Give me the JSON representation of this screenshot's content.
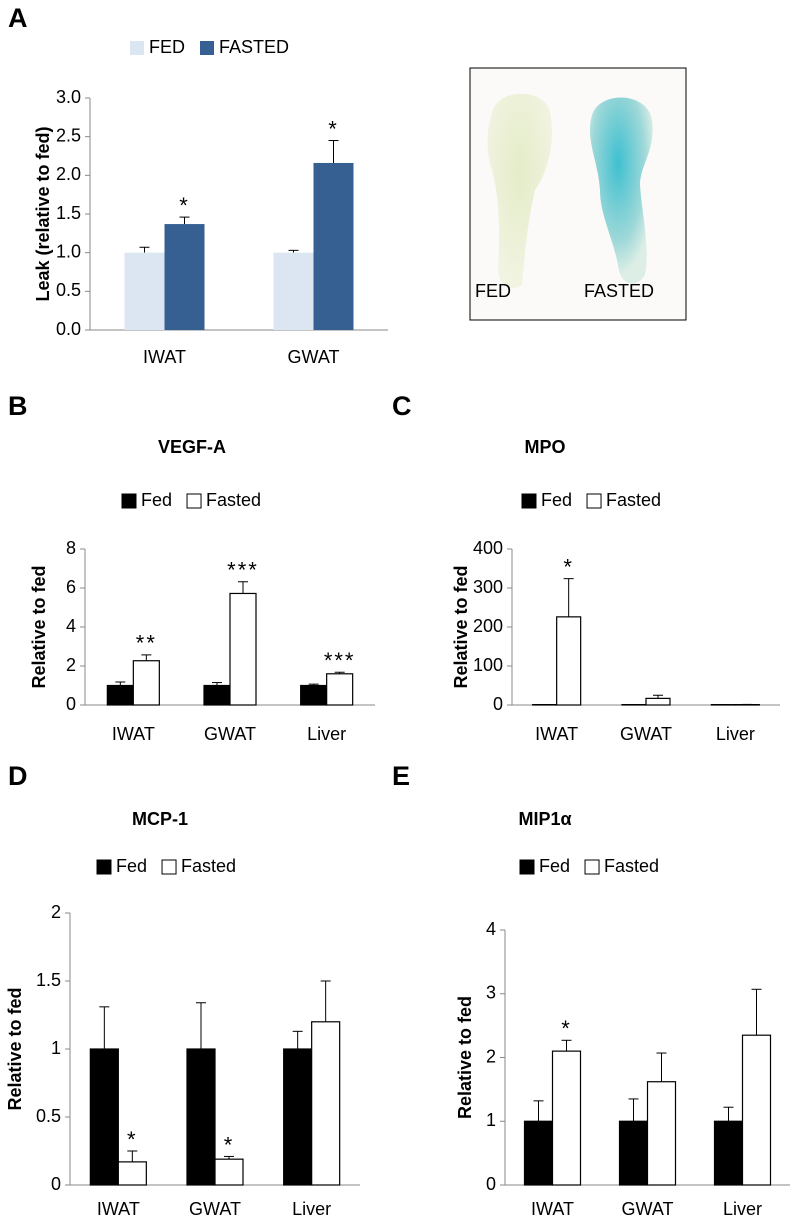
{
  "chart_data": [
    {
      "type": "bar",
      "panel": "A",
      "y_label": "Leak (relative to fed)",
      "categories": [
        "IWAT",
        "GWAT"
      ],
      "series": [
        {
          "name": "FED",
          "color": "#dce6f2",
          "values": [
            1.0,
            1.0
          ],
          "errors": [
            0.07,
            0.03
          ],
          "markers": [
            null,
            null
          ]
        },
        {
          "name": "FASTED",
          "color": "#376092",
          "values": [
            1.37,
            2.16
          ],
          "errors": [
            0.09,
            0.29
          ],
          "markers": [
            "*",
            "*"
          ]
        }
      ],
      "ylim": [
        0,
        3
      ],
      "yticks": [
        {
          "value": 0,
          "label": "0.0"
        },
        {
          "value": 0.5,
          "label": "0.5"
        },
        {
          "value": 1,
          "label": "1.0"
        },
        {
          "value": 1.5,
          "label": "1.5"
        },
        {
          "value": 2,
          "label": "2.0"
        },
        {
          "value": 2.5,
          "label": "2.5"
        },
        {
          "value": 3,
          "label": "3.0"
        }
      ]
    },
    {
      "type": "bar",
      "panel": "B",
      "title": "VEGF-A",
      "y_label": "Relative to fed",
      "categories": [
        "IWAT",
        "GWAT",
        "Liver"
      ],
      "series": [
        {
          "name": "Fed",
          "color": "#000000",
          "values": [
            1,
            1,
            1
          ],
          "errors": [
            0.18,
            0.15,
            0.07
          ],
          "markers": [
            null,
            null,
            null
          ]
        },
        {
          "name": "Fasted",
          "color": "#ffffff",
          "values": [
            2.27,
            5.72,
            1.6
          ],
          "errors": [
            0.3,
            0.6,
            0.08
          ],
          "markers": [
            "**",
            "***",
            "***"
          ]
        }
      ],
      "ylim": [
        0,
        8
      ],
      "yticks": [
        0,
        2,
        4,
        6,
        8
      ]
    },
    {
      "type": "bar",
      "panel": "C",
      "title": "MPO",
      "y_label": "Relative to fed",
      "categories": [
        "IWAT",
        "GWAT",
        "Liver"
      ],
      "series": [
        {
          "name": "Fed",
          "color": "#000000",
          "values": [
            1,
            1,
            1
          ],
          "errors": [
            0.3,
            0.3,
            0.3
          ],
          "markers": [
            null,
            null,
            null
          ]
        },
        {
          "name": "Fasted",
          "color": "#ffffff",
          "values": [
            226,
            17,
            1
          ],
          "errors": [
            98,
            8,
            0.5
          ],
          "markers": [
            "*",
            null,
            null
          ]
        }
      ],
      "ylim": [
        0,
        400
      ],
      "yticks": [
        0,
        100,
        200,
        300,
        400
      ]
    },
    {
      "type": "bar",
      "panel": "D",
      "title": "MCP-1",
      "y_label": "Relative to fed",
      "categories": [
        "IWAT",
        "GWAT",
        "Liver"
      ],
      "series": [
        {
          "name": "Fed",
          "color": "#000000",
          "values": [
            1,
            1,
            1
          ],
          "errors": [
            0.31,
            0.34,
            0.13
          ],
          "markers": [
            null,
            null,
            null
          ]
        },
        {
          "name": "Fasted",
          "color": "#ffffff",
          "values": [
            0.17,
            0.19,
            1.2
          ],
          "errors": [
            0.08,
            0.02,
            0.3
          ],
          "markers": [
            "*",
            "*",
            null
          ]
        }
      ],
      "ylim": [
        0,
        2
      ],
      "yticks": [
        0,
        0.5,
        1,
        1.5,
        2
      ]
    },
    {
      "type": "bar",
      "panel": "E",
      "title": "MIP1α",
      "y_label": "Relative to fed",
      "categories": [
        "IWAT",
        "GWAT",
        "Liver"
      ],
      "series": [
        {
          "name": "Fed",
          "color": "#000000",
          "values": [
            1,
            1,
            1
          ],
          "errors": [
            0.32,
            0.35,
            0.22
          ],
          "markers": [
            null,
            null,
            null
          ]
        },
        {
          "name": "Fasted",
          "color": "#ffffff",
          "values": [
            2.1,
            1.62,
            2.35
          ],
          "errors": [
            0.17,
            0.45,
            0.72
          ],
          "markers": [
            "*",
            null,
            null
          ]
        }
      ],
      "ylim": [
        0,
        4
      ],
      "yticks": [
        0,
        1,
        2,
        3,
        4
      ]
    }
  ],
  "photo_labels": [
    "FED",
    "FASTED"
  ]
}
